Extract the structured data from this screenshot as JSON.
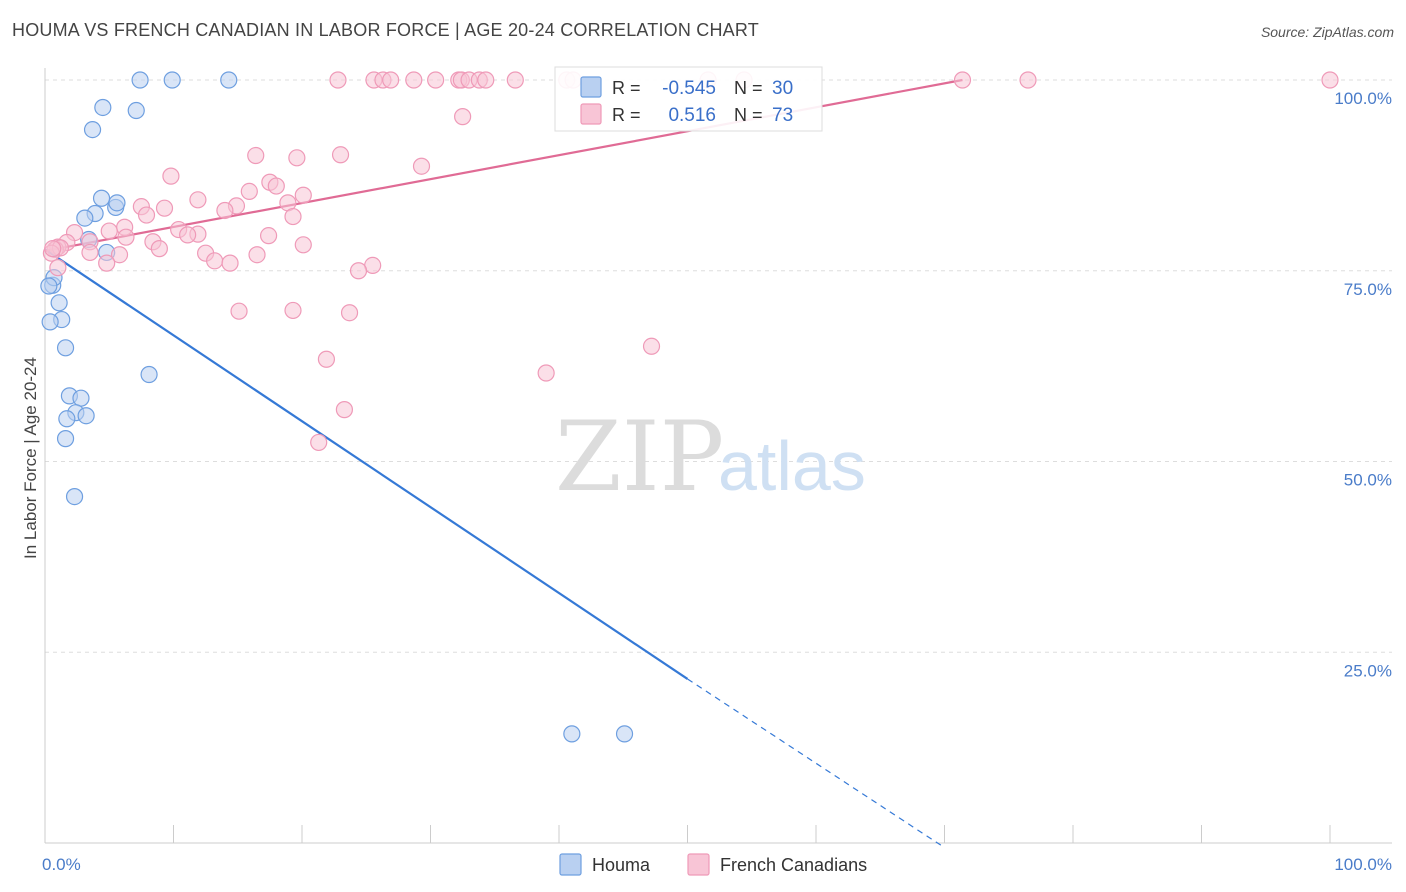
{
  "title": "HOUMA VS FRENCH CANADIAN IN LABOR FORCE | AGE 20-24 CORRELATION CHART",
  "source": "Source: ZipAtlas.com",
  "watermark": {
    "zip": "ZIP",
    "atlas": "atlas"
  },
  "chart_data": {
    "type": "scatter",
    "title": "HOUMA VS FRENCH CANADIAN IN LABOR FORCE | AGE 20-24 CORRELATION CHART",
    "xlabel": "",
    "ylabel": "In Labor Force | Age 20-24",
    "xlim": [
      0,
      100
    ],
    "ylim": [
      0,
      100
    ],
    "x_tick_labels": [
      "0.0%",
      "100.0%"
    ],
    "y_tick_labels": [
      {
        "value": 25,
        "label": "25.0%"
      },
      {
        "value": 50,
        "label": "50.0%"
      },
      {
        "value": 75,
        "label": "75.0%"
      },
      {
        "value": 100,
        "label": "100.0%"
      }
    ],
    "grid": true,
    "legend_position": "bottom-center",
    "stats": [
      {
        "series": "Houma",
        "r_label": "R =",
        "r": "-0.545",
        "n_label": "N =",
        "n": "30"
      },
      {
        "series": "French Canadians",
        "r_label": "R =",
        "r": "0.516",
        "n_label": "N =",
        "n": "73"
      }
    ],
    "series": [
      {
        "name": "Houma",
        "color": "#6e9fe0",
        "fill": "#b9d0f1",
        "line_color": "#3579d6",
        "trend": {
          "x0": 0,
          "y0": 77.8,
          "x1": 50,
          "y1": 21.5,
          "dash_to_x": 70,
          "dash_to_y": -0.6
        },
        "points": [
          [
            7.4,
            100
          ],
          [
            9.9,
            100
          ],
          [
            14.3,
            100
          ],
          [
            4.5,
            96.4
          ],
          [
            7.1,
            96.0
          ],
          [
            3.7,
            93.5
          ],
          [
            4.4,
            84.5
          ],
          [
            5.5,
            83.3
          ],
          [
            5.6,
            83.9
          ],
          [
            3.9,
            82.5
          ],
          [
            3.1,
            81.9
          ],
          [
            3.4,
            79.1
          ],
          [
            4.8,
            77.4
          ],
          [
            0.6,
            73.1
          ],
          [
            0.7,
            74.1
          ],
          [
            0.3,
            73.0
          ],
          [
            1.1,
            70.8
          ],
          [
            1.3,
            68.6
          ],
          [
            0.4,
            68.3
          ],
          [
            1.6,
            64.9
          ],
          [
            8.1,
            61.4
          ],
          [
            1.9,
            58.6
          ],
          [
            2.8,
            58.3
          ],
          [
            2.4,
            56.4
          ],
          [
            3.2,
            56.0
          ],
          [
            1.7,
            55.6
          ],
          [
            1.6,
            53.0
          ],
          [
            2.3,
            45.4
          ],
          [
            41.0,
            14.3
          ],
          [
            45.1,
            14.3
          ]
        ]
      },
      {
        "name": "French Canadians",
        "color": "#ef9ab8",
        "fill": "#f8c5d6",
        "line_color": "#e06b95",
        "trend": {
          "x0": 0,
          "y0": 77.6,
          "x1": 71.4,
          "y1": 100
        },
        "points": [
          [
            22.8,
            100
          ],
          [
            25.6,
            100
          ],
          [
            26.3,
            100
          ],
          [
            26.9,
            100
          ],
          [
            28.7,
            100
          ],
          [
            30.4,
            100
          ],
          [
            32.2,
            100
          ],
          [
            32.4,
            100
          ],
          [
            33.0,
            100
          ],
          [
            33.8,
            100
          ],
          [
            34.3,
            100
          ],
          [
            36.6,
            100
          ],
          [
            40.6,
            100
          ],
          [
            41.1,
            100
          ],
          [
            51.6,
            100
          ],
          [
            54.4,
            100
          ],
          [
            71.4,
            100
          ],
          [
            76.5,
            100
          ],
          [
            100,
            100
          ],
          [
            32.5,
            95.2
          ],
          [
            16.4,
            90.1
          ],
          [
            19.6,
            89.8
          ],
          [
            23.0,
            90.2
          ],
          [
            29.3,
            88.7
          ],
          [
            9.8,
            87.4
          ],
          [
            17.5,
            86.6
          ],
          [
            18.0,
            86.1
          ],
          [
            15.9,
            85.4
          ],
          [
            20.1,
            84.9
          ],
          [
            11.9,
            84.3
          ],
          [
            14.9,
            83.5
          ],
          [
            18.9,
            83.9
          ],
          [
            14.0,
            82.9
          ],
          [
            9.3,
            83.2
          ],
          [
            7.5,
            83.4
          ],
          [
            7.9,
            82.3
          ],
          [
            19.3,
            82.1
          ],
          [
            6.2,
            80.7
          ],
          [
            10.4,
            80.4
          ],
          [
            11.9,
            79.8
          ],
          [
            5.0,
            80.2
          ],
          [
            6.3,
            79.4
          ],
          [
            11.1,
            79.7
          ],
          [
            2.3,
            80.0
          ],
          [
            17.4,
            79.6
          ],
          [
            3.5,
            78.8
          ],
          [
            8.4,
            78.8
          ],
          [
            1.7,
            78.7
          ],
          [
            20.1,
            78.4
          ],
          [
            1.0,
            78.1
          ],
          [
            0.8,
            77.8
          ],
          [
            8.9,
            77.9
          ],
          [
            12.5,
            77.3
          ],
          [
            5.8,
            77.1
          ],
          [
            16.5,
            77.1
          ],
          [
            3.5,
            77.4
          ],
          [
            1.2,
            78.0
          ],
          [
            0.5,
            77.3
          ],
          [
            13.2,
            76.3
          ],
          [
            14.4,
            76.0
          ],
          [
            4.8,
            76.0
          ],
          [
            25.5,
            75.7
          ],
          [
            24.4,
            75.0
          ],
          [
            1.0,
            75.4
          ],
          [
            15.1,
            69.7
          ],
          [
            19.3,
            69.8
          ],
          [
            23.7,
            69.5
          ],
          [
            47.2,
            65.1
          ],
          [
            21.9,
            63.4
          ],
          [
            39.0,
            61.6
          ],
          [
            23.3,
            56.8
          ],
          [
            21.3,
            52.5
          ],
          [
            0.6,
            77.9
          ]
        ]
      }
    ]
  }
}
